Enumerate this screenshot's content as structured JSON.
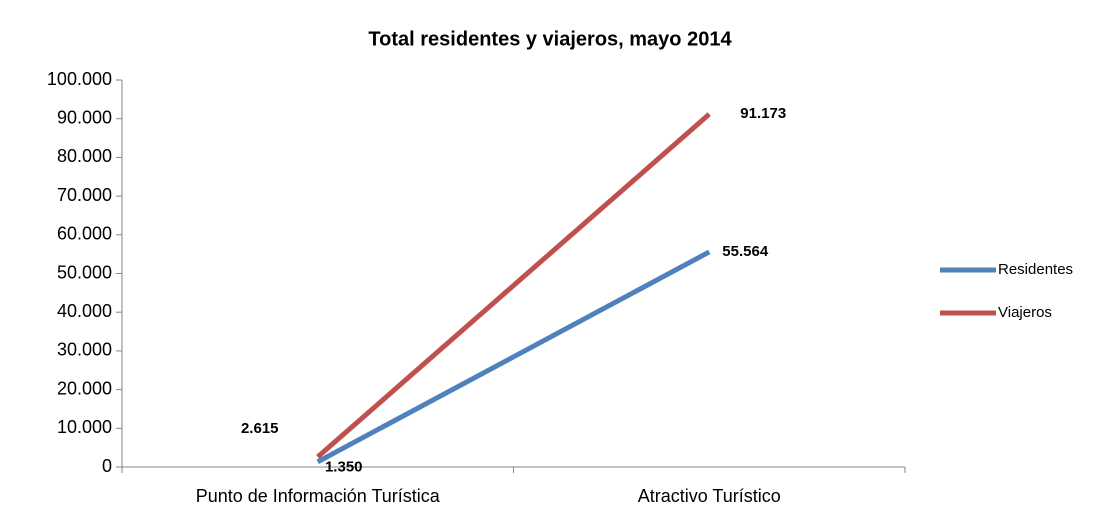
{
  "chart_data": {
    "type": "line",
    "title": "Total residentes y viajeros, mayo 2014",
    "categories": [
      "Punto de Información Turística",
      "Atractivo Turístico"
    ],
    "series": [
      {
        "name": "Residentes",
        "color": "#4f81bd",
        "values": [
          1350,
          55564
        ],
        "value_labels": [
          "1.350",
          "55.564"
        ]
      },
      {
        "name": "Viajeros",
        "color": "#c0504d",
        "values": [
          2615,
          91173
        ],
        "value_labels": [
          "2.615",
          "91.173"
        ]
      }
    ],
    "ylim": [
      0,
      100000
    ],
    "yticks": [
      0,
      {
        "value": 10000,
        "label": "10.000"
      },
      {
        "value": 20000,
        "label": "20.000"
      },
      {
        "value": 30000,
        "label": "30.000"
      },
      {
        "value": 40000,
        "label": "40.000"
      },
      {
        "value": 50000,
        "label": "50.000"
      },
      {
        "value": 60000,
        "label": "60.000"
      },
      {
        "value": 70000,
        "label": "70.000"
      },
      {
        "value": 80000,
        "label": "80.000"
      },
      {
        "value": 90000,
        "label": "90.000"
      },
      {
        "value": 100000,
        "label": "100.000"
      }
    ],
    "legend": "right"
  }
}
